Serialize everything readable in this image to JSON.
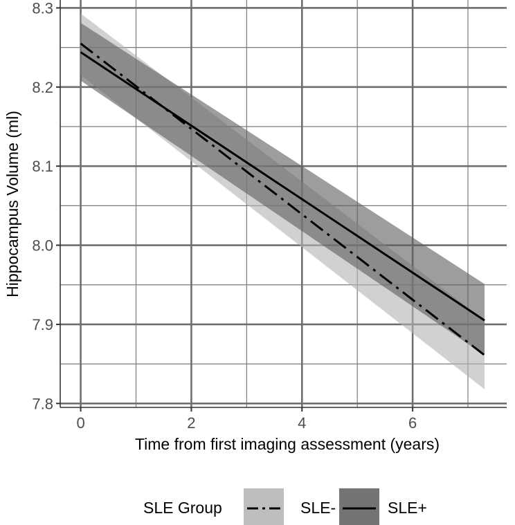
{
  "chart_data": {
    "type": "line",
    "title": "",
    "xlabel": "Time from first imaging assessment (years)",
    "ylabel": "Hippocampus Volume (ml)",
    "xlim": [
      -0.37,
      7.7
    ],
    "ylim": [
      7.795,
      8.31
    ],
    "x_ticks": [
      0,
      2,
      4,
      6
    ],
    "x_tick_labels": [
      "0",
      "2",
      "4",
      "6"
    ],
    "y_ticks": [
      7.8,
      7.9,
      8.0,
      8.1,
      8.2,
      8.3
    ],
    "y_tick_labels": [
      "7.8",
      "7.9",
      "8.0",
      "8.1",
      "8.2",
      "8.3"
    ],
    "grid": true,
    "legend_position": "bottom",
    "legend_title": "SLE Group",
    "series": [
      {
        "name": "SLE-",
        "line_style": "dashdot",
        "x": [
          0,
          7.3
        ],
        "y": [
          8.255,
          7.861
        ],
        "ci_lower": [
          8.215,
          7.818
        ],
        "ci_upper": [
          8.293,
          7.905
        ],
        "band_color": "#b3b3b3",
        "line_color": "#000000"
      },
      {
        "name": "SLE+",
        "line_style": "solid",
        "x": [
          0,
          7.3
        ],
        "y": [
          8.244,
          7.905
        ],
        "ci_lower": [
          8.208,
          7.861
        ],
        "ci_upper": [
          8.281,
          7.951
        ],
        "band_color": "#5c5c5c",
        "line_color": "#000000"
      }
    ]
  }
}
